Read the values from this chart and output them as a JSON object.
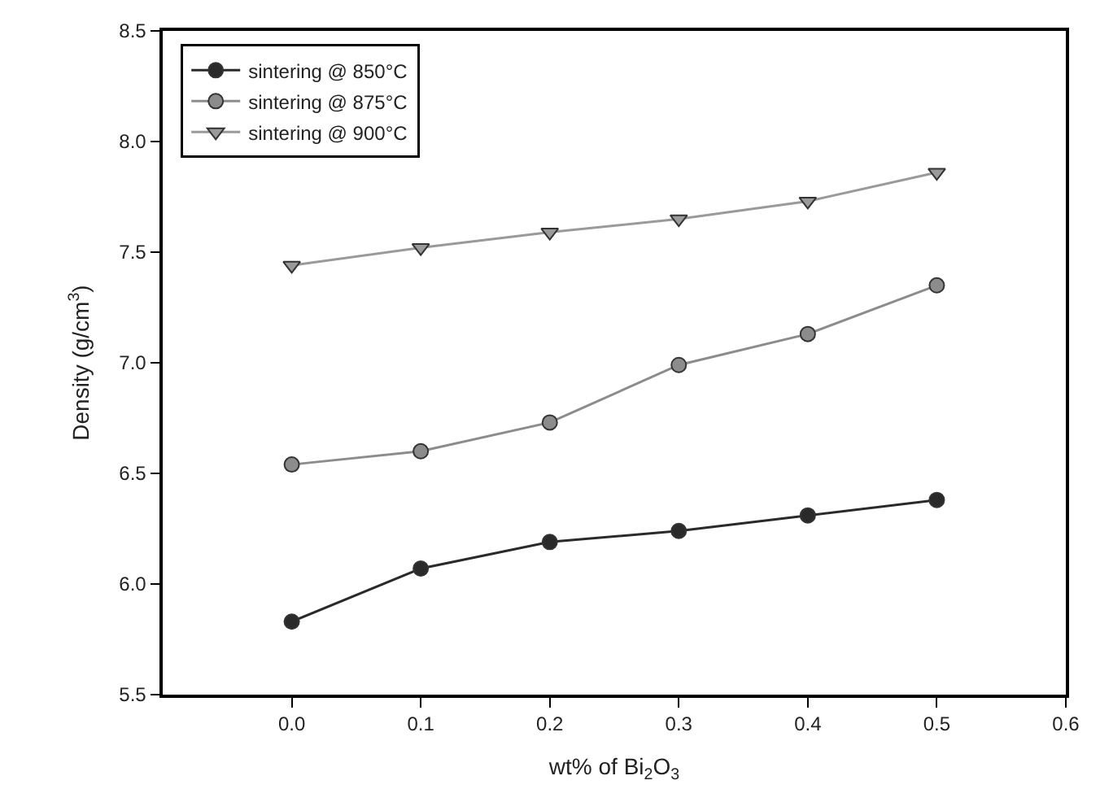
{
  "chart_data": {
    "type": "line",
    "xlabel": "wt% of Bi$_{2}$O$_{3}$",
    "ylabel": "Density (g/cm$^{3}$)",
    "x": [
      0.0,
      0.1,
      0.2,
      0.3,
      0.4,
      0.5
    ],
    "series": [
      {
        "name": "sintering @ 850°C",
        "color": "#2a2a2a",
        "marker": "circle",
        "values": [
          5.83,
          6.07,
          6.19,
          6.24,
          6.31,
          6.38
        ]
      },
      {
        "name": "sintering @ 875°C",
        "color": "#8c8c8c",
        "marker": "circle",
        "values": [
          6.54,
          6.6,
          6.73,
          6.99,
          7.13,
          7.35
        ]
      },
      {
        "name": "sintering @ 900°C",
        "color": "#9a9a9a",
        "marker": "triangle-down",
        "values": [
          7.44,
          7.52,
          7.59,
          7.65,
          7.73,
          7.86
        ]
      }
    ],
    "xlim": [
      -0.1,
      0.6
    ],
    "xticks": [
      {
        "value": 0,
        "label": "0.0"
      },
      0.1,
      0.2,
      0.3,
      0.4,
      0.5,
      0.6
    ],
    "ylim": [
      5.5,
      8.5
    ],
    "yticks": [
      5.5,
      {
        "value": 6,
        "label": "6.0"
      },
      6.5,
      {
        "value": 7,
        "label": "7.0"
      },
      7.5,
      {
        "value": 8,
        "label": "8.0"
      },
      8.5
    ],
    "legend": "top left",
    "line_style": "solid"
  }
}
